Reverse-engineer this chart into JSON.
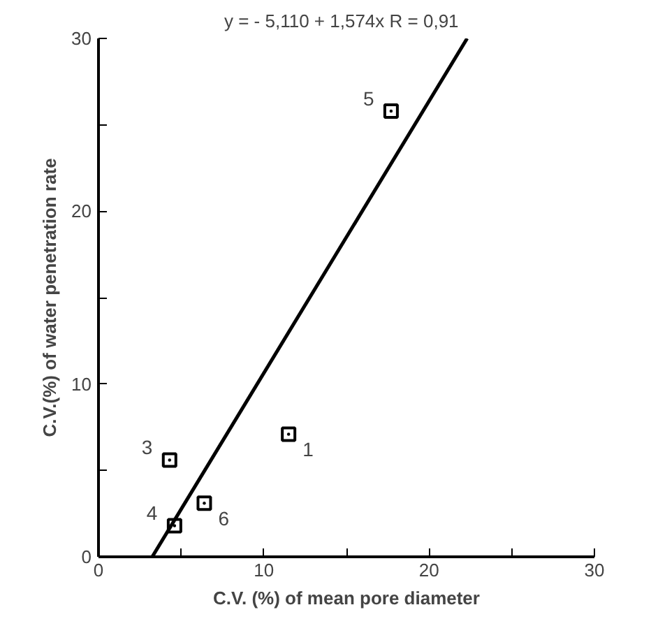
{
  "chart_data": {
    "type": "scatter",
    "title": "y = - 5,110 + 1,574x   R = 0,91",
    "xlabel": "C.V. (%) of mean pore diameter",
    "ylabel": "C.V.(%) of water penetration rate",
    "xlim": [
      0,
      30
    ],
    "ylim": [
      0,
      30
    ],
    "xticks": [
      0,
      {
        "value": 5,
        "label": null
      },
      10,
      {
        "value": 15,
        "label": null
      },
      20,
      {
        "value": 25,
        "label": null
      },
      30
    ],
    "yticks": [
      0,
      {
        "value": 5,
        "label": null
      },
      10,
      {
        "value": 15,
        "label": null
      },
      20,
      {
        "value": 25,
        "label": null
      },
      30
    ],
    "grid": false,
    "series": [
      {
        "color": "#000000",
        "marker": "square",
        "x": [
          11.5,
          17.7,
          4.3,
          4.6,
          6.4
        ],
        "values": [
          7.1,
          25.8,
          5.6,
          1.8,
          3.1
        ]
      },
      {
        "type": "line",
        "marker": "none",
        "color": "#000000",
        "x": [
          3.25,
          22.3
        ],
        "values": [
          0,
          30
        ]
      }
    ],
    "annotations": [
      {
        "text": "1",
        "x": 11.5,
        "y": 7.1
      },
      {
        "text": "5",
        "x": 17.7,
        "y": 25.8
      },
      {
        "text": "3",
        "x": 4.3,
        "y": 5.6
      },
      {
        "text": "4",
        "x": 4.6,
        "y": 1.8
      },
      {
        "text": "6",
        "x": 6.4,
        "y": 3.1
      }
    ]
  }
}
